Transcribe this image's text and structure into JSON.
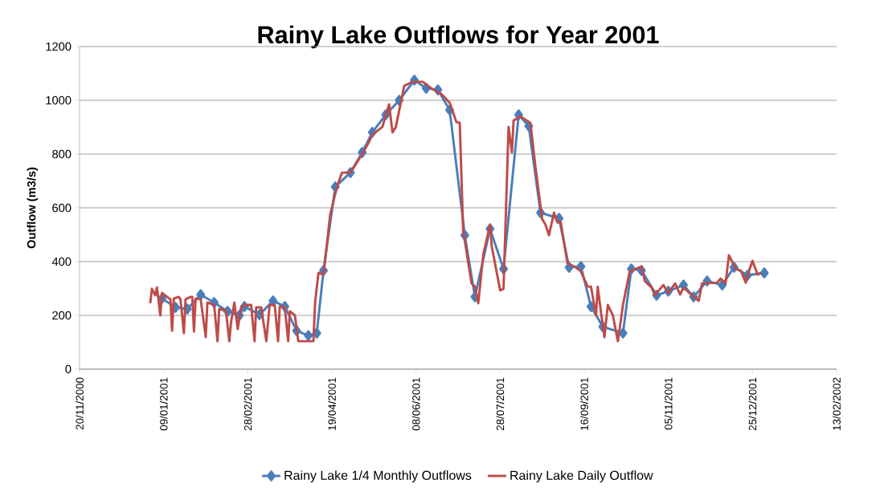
{
  "chart_data": {
    "type": "line",
    "title": "Rainy Lake Outflows for Year 2001",
    "ylabel": "Outflow (m3/s)",
    "xlim": [
      "2000-11-20",
      "2002-02-13"
    ],
    "xticks": [
      {
        "value": "2000-11-20",
        "label": "20/11/2000"
      },
      {
        "value": "2001-01-09",
        "label": "09/01/2001"
      },
      {
        "value": "2001-02-28",
        "label": "28/02/2001"
      },
      {
        "value": "2001-04-19",
        "label": "19/04/2001"
      },
      {
        "value": "2001-06-08",
        "label": "08/06/2001"
      },
      {
        "value": "2001-07-28",
        "label": "28/07/2001"
      },
      {
        "value": "2001-09-16",
        "label": "16/09/2001"
      },
      {
        "value": "2001-11-05",
        "label": "05/11/2001"
      },
      {
        "value": "2001-12-25",
        "label": "25/12/2001"
      },
      {
        "value": "2002-02-13",
        "label": "13/02/2002"
      }
    ],
    "ylim": [
      0,
      1200
    ],
    "yticks": [
      0,
      200,
      400,
      600,
      800,
      1000,
      1200
    ],
    "grid": "y",
    "legend": "bottom",
    "line_style": "solid",
    "series": [
      {
        "name": "Rainy Lake 1/4 Monthly Outflows",
        "color": "#4a7ebb",
        "marker": "diamond",
        "x": [
          "2001-01-08",
          "2001-01-16",
          "2001-01-23",
          "2001-01-31",
          "2001-02-08",
          "2001-02-16",
          "2001-02-23",
          "2001-02-26",
          "2001-03-07",
          "2001-03-15",
          "2001-03-22",
          "2001-03-29",
          "2001-04-05",
          "2001-04-10",
          "2001-04-14",
          "2001-04-21",
          "2001-04-30",
          "2001-05-07",
          "2001-05-13",
          "2001-05-21",
          "2001-05-29",
          "2001-06-07",
          "2001-06-14",
          "2001-06-21",
          "2001-06-28",
          "2001-07-07",
          "2001-07-13",
          "2001-07-22",
          "2001-07-30",
          "2001-08-08",
          "2001-08-14",
          "2001-08-21",
          "2001-09-01",
          "2001-09-07",
          "2001-09-14",
          "2001-09-20",
          "2001-09-27",
          "2001-10-09",
          "2001-10-14",
          "2001-10-20",
          "2001-10-29",
          "2001-11-05",
          "2001-11-14",
          "2001-11-20",
          "2001-11-28",
          "2001-12-07",
          "2001-12-14",
          "2001-12-22",
          "2002-01-01"
        ],
        "values": [
          263,
          230,
          224,
          277,
          248,
          215,
          200,
          233,
          203,
          254,
          233,
          143,
          125,
          134,
          367,
          678,
          731,
          806,
          881,
          946,
          1000,
          1075,
          1045,
          1039,
          964,
          498,
          269,
          522,
          373,
          946,
          904,
          582,
          561,
          379,
          382,
          233,
          158,
          134,
          373,
          367,
          275,
          290,
          313,
          269,
          328,
          313,
          379,
          349,
          358
        ]
      },
      {
        "name": "Rainy Lake Daily Outflow",
        "color": "#be4b48",
        "marker": "none",
        "x": [
          "2001-01-01",
          "2001-01-02",
          "2001-01-04",
          "2001-01-05",
          "2001-01-07",
          "2001-01-08",
          "2001-01-11",
          "2001-01-13",
          "2001-01-14",
          "2001-01-15",
          "2001-01-18",
          "2001-01-19",
          "2001-01-21",
          "2001-01-22",
          "2001-01-25",
          "2001-01-26",
          "2001-01-27",
          "2001-01-28",
          "2001-01-31",
          "2001-02-03",
          "2001-02-04",
          "2001-02-08",
          "2001-02-10",
          "2001-02-11",
          "2001-02-15",
          "2001-02-17",
          "2001-02-18",
          "2001-02-20",
          "2001-02-22",
          "2001-02-24",
          "2001-02-26",
          "2001-03-02",
          "2001-03-04",
          "2001-03-05",
          "2001-03-08",
          "2001-03-11",
          "2001-03-13",
          "2001-03-16",
          "2001-03-18",
          "2001-03-19",
          "2001-03-22",
          "2001-03-24",
          "2001-03-25",
          "2001-03-28",
          "2001-03-30",
          "2001-04-03",
          "2001-04-08",
          "2001-04-09",
          "2001-04-11",
          "2001-04-14",
          "2001-04-18",
          "2001-04-22",
          "2001-04-25",
          "2001-04-30",
          "2001-05-07",
          "2001-05-11",
          "2001-05-13",
          "2001-05-19",
          "2001-05-23",
          "2001-05-25",
          "2001-05-27",
          "2001-06-01",
          "2001-06-06",
          "2001-06-12",
          "2001-06-17",
          "2001-06-23",
          "2001-06-28",
          "2001-07-02",
          "2001-07-04",
          "2001-07-06",
          "2001-07-11",
          "2001-07-13",
          "2001-07-15",
          "2001-07-18",
          "2001-07-22",
          "2001-07-23",
          "2001-07-28",
          "2001-07-30",
          "2001-08-02",
          "2001-08-04",
          "2001-08-05",
          "2001-08-09",
          "2001-08-15",
          "2001-08-18",
          "2001-08-22",
          "2001-08-24",
          "2001-08-26",
          "2001-08-29",
          "2001-08-31",
          "2001-09-02",
          "2001-09-06",
          "2001-09-11",
          "2001-09-14",
          "2001-09-18",
          "2001-09-20",
          "2001-09-23",
          "2001-09-24",
          "2001-09-26",
          "2001-09-28",
          "2001-09-30",
          "2001-10-03",
          "2001-10-06",
          "2001-10-09",
          "2001-10-13",
          "2001-10-20",
          "2001-10-22",
          "2001-10-26",
          "2001-10-28",
          "2001-11-02",
          "2001-11-05",
          "2001-11-09",
          "2001-11-12",
          "2001-11-14",
          "2001-11-19",
          "2001-11-23",
          "2001-11-25",
          "2001-12-04",
          "2001-12-06",
          "2001-12-09",
          "2001-12-11",
          "2001-12-15",
          "2001-12-18",
          "2001-12-21",
          "2001-12-23",
          "2001-12-25",
          "2001-12-28",
          "2001-12-30"
        ],
        "values": [
          245,
          299,
          275,
          304,
          200,
          284,
          269,
          260,
          143,
          263,
          269,
          260,
          134,
          260,
          269,
          269,
          140,
          263,
          260,
          119,
          248,
          239,
          104,
          224,
          218,
          104,
          173,
          248,
          149,
          230,
          239,
          239,
          104,
          230,
          230,
          104,
          239,
          239,
          104,
          233,
          230,
          104,
          215,
          200,
          104,
          104,
          104,
          248,
          358,
          352,
          576,
          678,
          731,
          731,
          800,
          845,
          872,
          901,
          985,
          881,
          901,
          1054,
          1069,
          1069,
          1045,
          1024,
          991,
          919,
          916,
          516,
          319,
          307,
          245,
          427,
          537,
          457,
          293,
          299,
          901,
          806,
          925,
          940,
          916,
          752,
          558,
          537,
          498,
          582,
          546,
          546,
          394,
          379,
          364,
          307,
          307,
          200,
          307,
          209,
          119,
          239,
          200,
          104,
          239,
          364,
          382,
          328,
          304,
          275,
          313,
          284,
          319,
          278,
          304,
          275,
          254,
          319,
          322,
          337,
          319,
          424,
          373,
          367,
          322,
          367,
          403,
          352,
          358
        ]
      }
    ]
  }
}
